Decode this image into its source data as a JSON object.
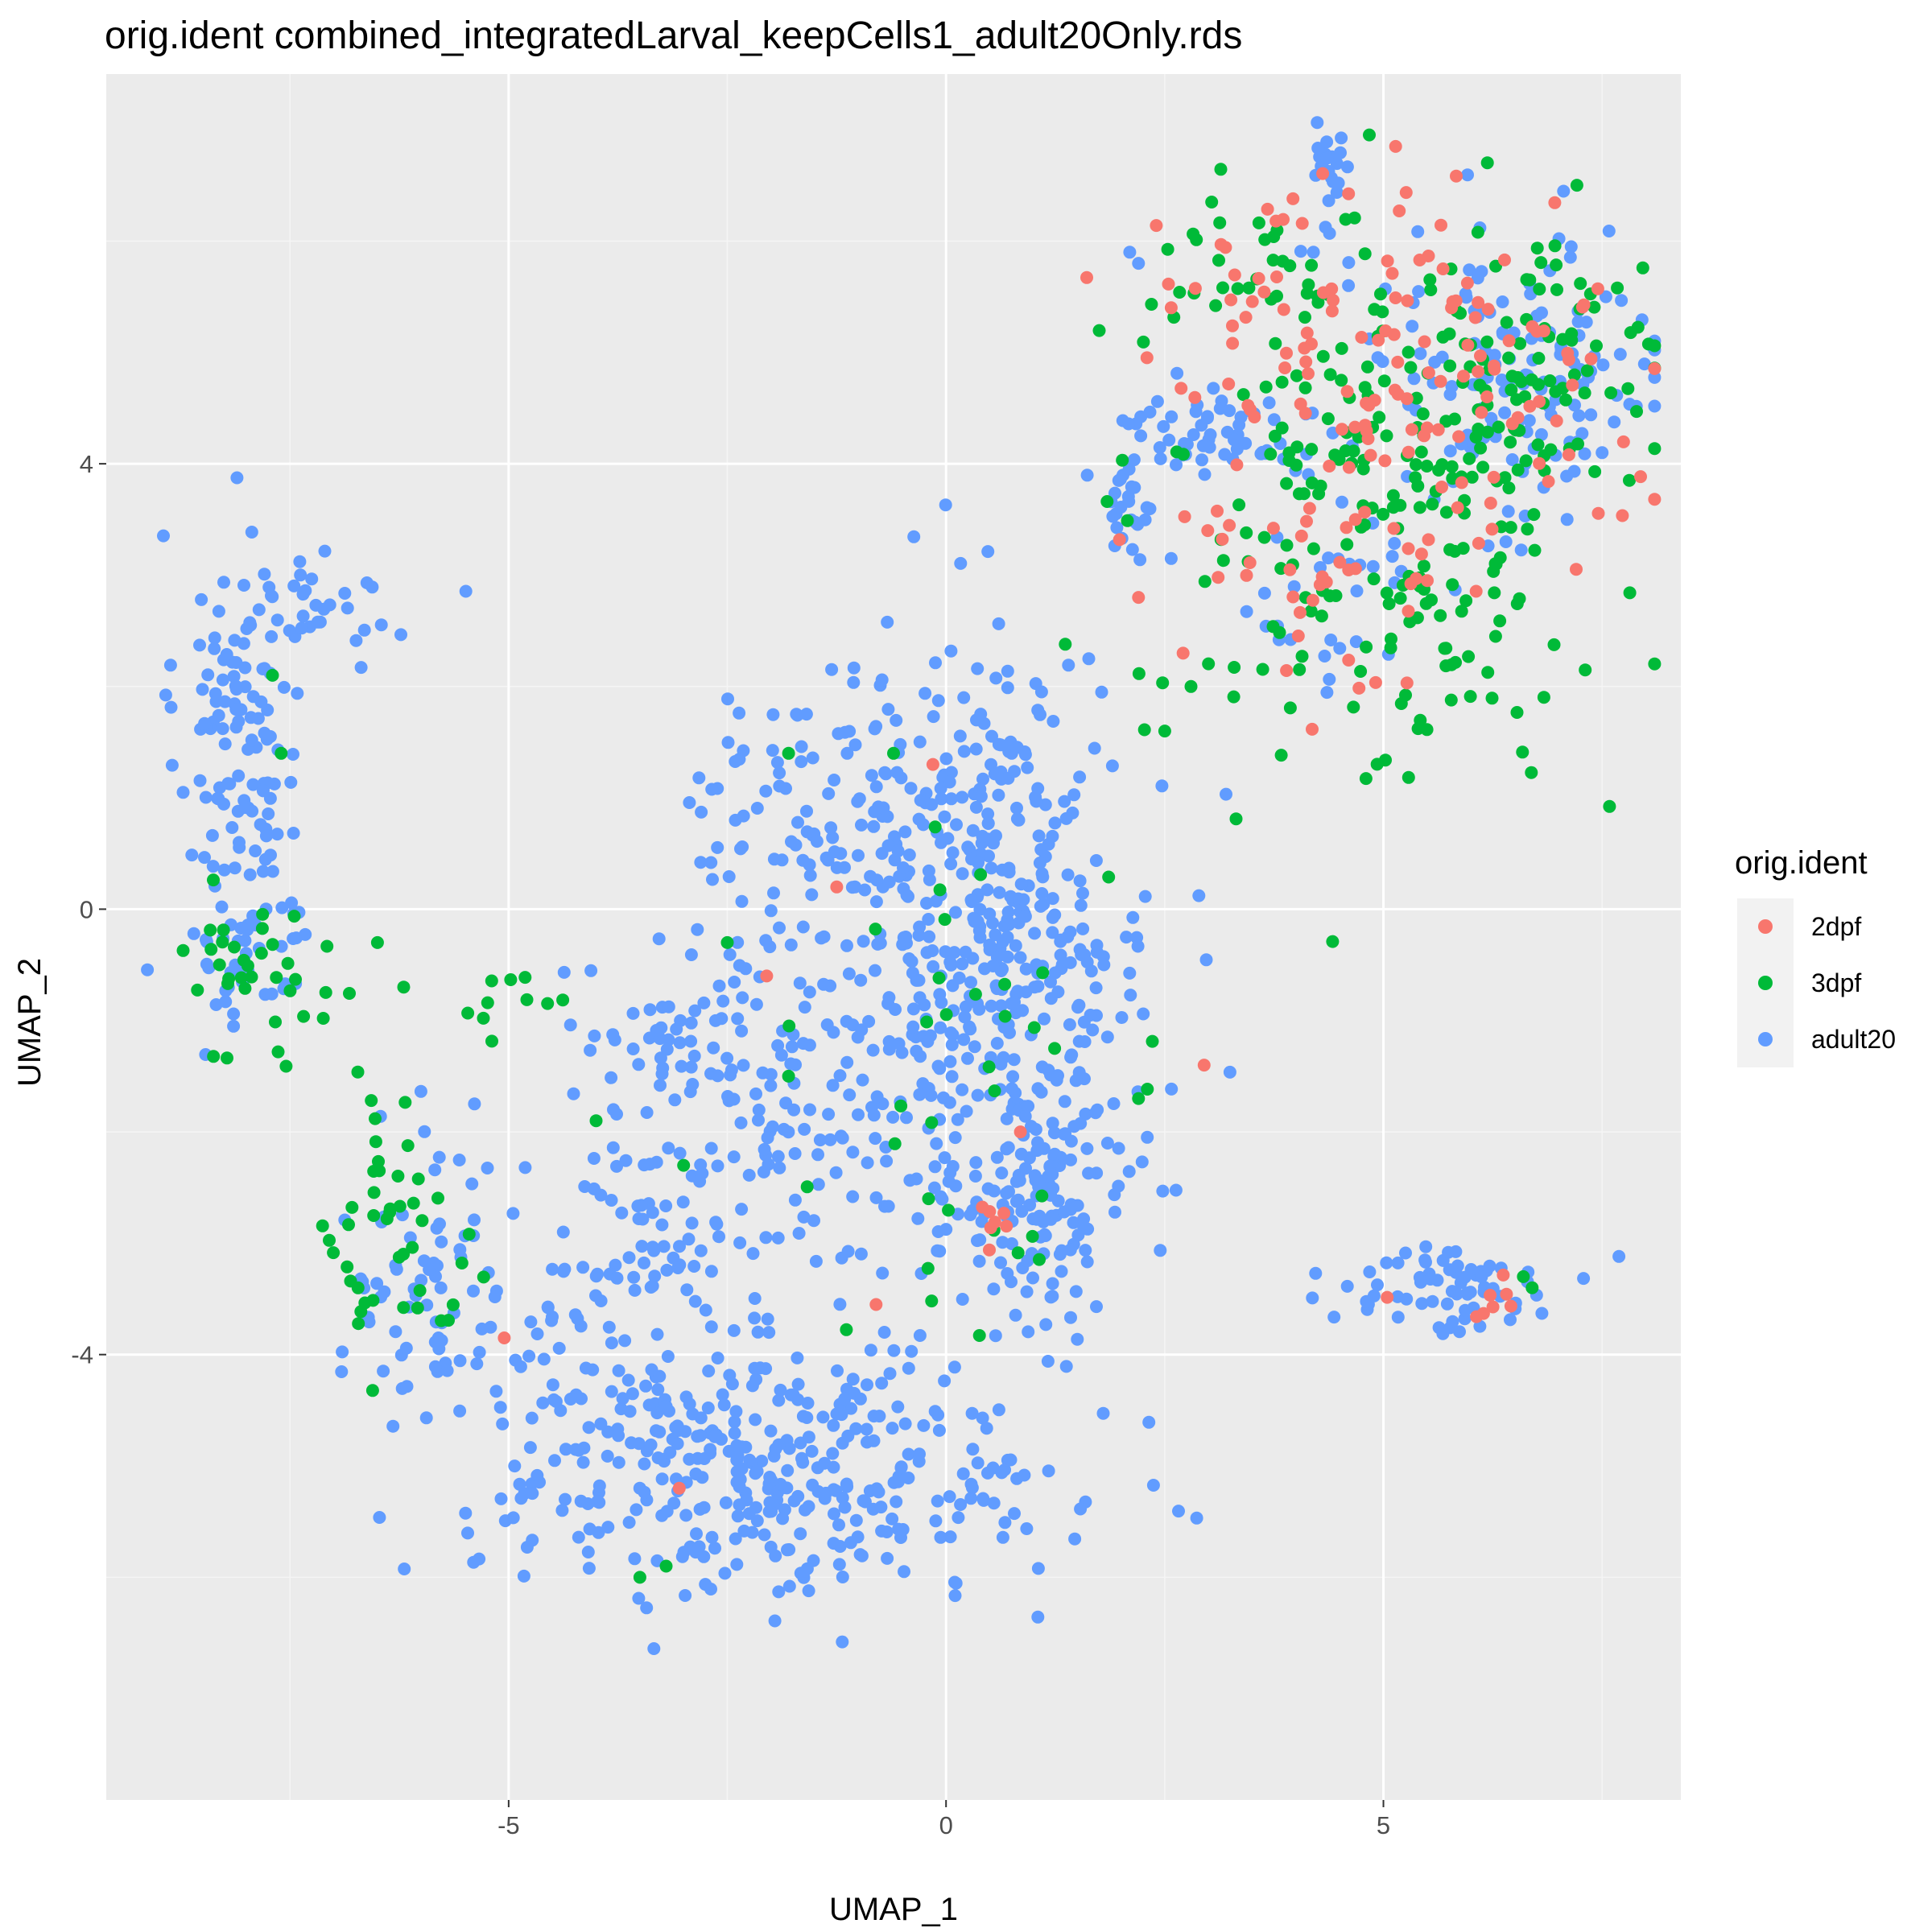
{
  "chart_data": {
    "type": "scatter",
    "title": "orig.ident combined_integratedLarval_keepCells1_adult20Only.rds",
    "xlabel": "UMAP_1",
    "ylabel": "UMAP_2",
    "xlim": [
      -9.6,
      8.4
    ],
    "ylim": [
      -8.0,
      7.5
    ],
    "x_ticks": [
      -5,
      0,
      5
    ],
    "y_ticks": [
      -4,
      0,
      4
    ],
    "x_tick_labels": [
      "-5",
      "0",
      "5"
    ],
    "y_tick_labels": [
      "-4",
      "0",
      "4"
    ],
    "grid": true,
    "legend": {
      "title": "orig.ident",
      "position": "right",
      "entries": [
        "2dpf",
        "3dpf",
        "adult20"
      ]
    },
    "series": [
      {
        "name": "2dpf",
        "color": "#F8766D",
        "clusters": [
          {
            "cx": 3.6,
            "cy": 5.4,
            "sx": 1.0,
            "sy": 0.5,
            "n": 45
          },
          {
            "cx": 5.8,
            "cy": 4.9,
            "sx": 1.1,
            "sy": 0.8,
            "n": 80
          },
          {
            "cx": 4.6,
            "cy": 3.3,
            "sx": 1.0,
            "sy": 0.7,
            "n": 55
          },
          {
            "cx": 6.2,
            "cy": -3.5,
            "sx": 0.35,
            "sy": 0.15,
            "n": 8
          },
          {
            "cx": 0.6,
            "cy": -2.8,
            "sx": 0.15,
            "sy": 0.12,
            "n": 7
          }
        ],
        "points": [
          [
            -0.15,
            1.3
          ],
          [
            2.95,
            -1.4
          ],
          [
            -0.8,
            -3.55
          ],
          [
            -5.05,
            -3.85
          ],
          [
            -3.05,
            -5.2
          ],
          [
            -2.05,
            -0.6
          ],
          [
            -1.25,
            0.2
          ],
          [
            0.85,
            -2.0
          ],
          [
            2.2,
            2.8
          ]
        ]
      },
      {
        "name": "3dpf",
        "color": "#00BA38",
        "clusters": [
          {
            "cx": 3.2,
            "cy": 5.8,
            "sx": 0.5,
            "sy": 0.4,
            "n": 25
          },
          {
            "cx": 5.0,
            "cy": 3.6,
            "sx": 1.2,
            "sy": 1.2,
            "n": 230
          },
          {
            "cx": 6.8,
            "cy": 4.8,
            "sx": 0.8,
            "sy": 0.6,
            "n": 70
          },
          {
            "cx": -7.8,
            "cy": -0.6,
            "sx": 0.6,
            "sy": 0.4,
            "n": 35
          },
          {
            "cx": -6.2,
            "cy": -3.0,
            "sx": 0.4,
            "sy": 0.6,
            "n": 45
          },
          {
            "cx": -4.9,
            "cy": -0.8,
            "sx": 0.35,
            "sy": 0.2,
            "n": 10
          },
          {
            "cx": 0.5,
            "cy": -1.2,
            "sx": 0.9,
            "sy": 1.2,
            "n": 35
          }
        ],
        "points": [
          [
            -7.7,
            2.1
          ],
          [
            -7.6,
            1.4
          ],
          [
            2.5,
            1.6
          ],
          [
            2.8,
            2.0
          ],
          [
            -1.8,
            1.4
          ],
          [
            -0.6,
            1.4
          ],
          [
            -2.5,
            -0.3
          ],
          [
            -3.5,
            -6.0
          ],
          [
            -3.2,
            -5.9
          ],
          [
            -1.8,
            -1.5
          ],
          [
            -0.2,
            -2.6
          ],
          [
            -3.0,
            -2.3
          ],
          [
            -4.0,
            -1.9
          ],
          [
            6.6,
            -3.3
          ],
          [
            6.7,
            -3.4
          ],
          [
            2.2,
            -1.7
          ],
          [
            -6.2,
            -0.7
          ],
          [
            -6.5,
            -0.3
          ]
        ]
      },
      {
        "name": "adult20",
        "color": "#619CFF",
        "clusters": [
          {
            "cx": -8.1,
            "cy": 1.6,
            "sx": 0.35,
            "sy": 0.9,
            "n": 120
          },
          {
            "cx": -7.1,
            "cy": 2.7,
            "sx": 0.5,
            "sy": 0.2,
            "n": 30
          },
          {
            "cx": -8.0,
            "cy": -0.4,
            "sx": 0.4,
            "sy": 0.35,
            "n": 40
          },
          {
            "cx": 0.6,
            "cy": -0.3,
            "sx": 0.9,
            "sy": 1.3,
            "n": 420
          },
          {
            "cx": -1.2,
            "cy": 0.8,
            "sx": 0.9,
            "sy": 0.6,
            "n": 120
          },
          {
            "cx": -1.8,
            "cy": -5.1,
            "sx": 1.6,
            "sy": 0.55,
            "n": 330
          },
          {
            "cx": -4.0,
            "cy": -4.1,
            "sx": 1.0,
            "sy": 0.8,
            "n": 110
          },
          {
            "cx": -5.9,
            "cy": -3.2,
            "sx": 0.5,
            "sy": 0.6,
            "n": 60
          },
          {
            "cx": -3.2,
            "cy": -1.2,
            "sx": 0.6,
            "sy": 0.4,
            "n": 55
          },
          {
            "cx": -1.5,
            "cy": -1.9,
            "sx": 0.8,
            "sy": 0.8,
            "n": 110
          },
          {
            "cx": -3.4,
            "cy": -2.8,
            "sx": 0.6,
            "sy": 0.4,
            "n": 50
          },
          {
            "cx": 1.1,
            "cy": -2.7,
            "sx": 0.5,
            "sy": 0.45,
            "n": 120
          },
          {
            "cx": 5.8,
            "cy": -3.4,
            "sx": 0.6,
            "sy": 0.2,
            "n": 70
          },
          {
            "cx": 6.5,
            "cy": 4.8,
            "sx": 0.9,
            "sy": 0.7,
            "n": 140
          },
          {
            "cx": 3.0,
            "cy": 4.3,
            "sx": 0.7,
            "sy": 0.25,
            "n": 60
          },
          {
            "cx": 2.1,
            "cy": 3.5,
            "sx": 0.12,
            "sy": 0.25,
            "n": 25
          },
          {
            "cx": 4.4,
            "cy": 6.5,
            "sx": 0.12,
            "sy": 0.35,
            "n": 22
          },
          {
            "cx": 4.4,
            "cy": 2.8,
            "sx": 0.8,
            "sy": 0.5,
            "n": 30
          }
        ],
        "points": [
          [
            4.2,
            5.9
          ],
          [
            4.6,
            5.6
          ],
          [
            2.1,
            5.9
          ],
          [
            2.2,
            5.8
          ],
          [
            7.5,
            4.1
          ],
          [
            7.1,
            3.5
          ],
          [
            6.4,
            3.3
          ]
        ]
      }
    ]
  }
}
